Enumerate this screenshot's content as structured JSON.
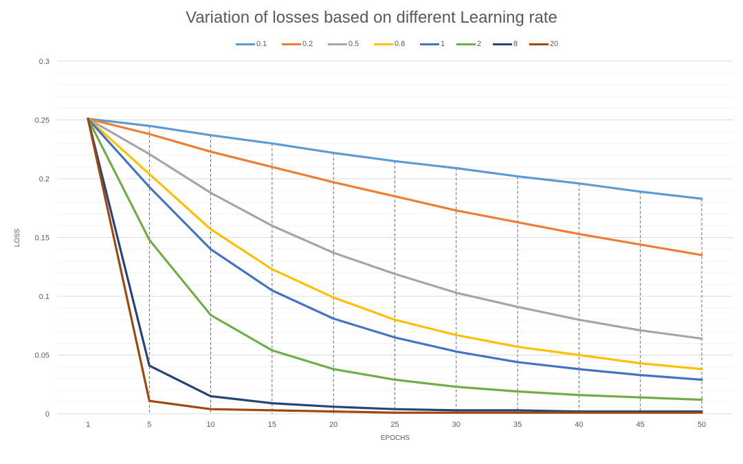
{
  "chart_data": {
    "type": "line",
    "title": "Variation of losses based on different Learning rate",
    "xlabel": "EPOCHS",
    "ylabel": "LOSS",
    "categories": [
      "1",
      "5",
      "10",
      "15",
      "20",
      "25",
      "30",
      "35",
      "40",
      "45",
      "50"
    ],
    "ylim": [
      0,
      0.3
    ],
    "yticks": [
      "0",
      "0.05",
      "0.1",
      "0.15",
      "0.2",
      "0.25",
      "0.3"
    ],
    "grid": true,
    "legend_position": "top",
    "series": [
      {
        "name": "0.1",
        "color": "#5B9BD5",
        "values": [
          0.251,
          0.245,
          0.237,
          0.23,
          0.222,
          0.215,
          0.209,
          0.202,
          0.196,
          0.189,
          0.183
        ]
      },
      {
        "name": "0.2",
        "color": "#ED7D31",
        "values": [
          0.251,
          0.238,
          0.223,
          0.21,
          0.197,
          0.185,
          0.173,
          0.163,
          0.153,
          0.144,
          0.135
        ]
      },
      {
        "name": "0.5",
        "color": "#A5A5A5",
        "values": [
          0.251,
          0.221,
          0.188,
          0.16,
          0.137,
          0.119,
          0.103,
          0.091,
          0.08,
          0.071,
          0.064
        ]
      },
      {
        "name": "0.8",
        "color": "#FFC000",
        "values": [
          0.251,
          0.204,
          0.157,
          0.123,
          0.099,
          0.08,
          0.067,
          0.057,
          0.05,
          0.043,
          0.038
        ]
      },
      {
        "name": "1",
        "color": "#4472C4",
        "values": [
          0.251,
          0.193,
          0.14,
          0.105,
          0.081,
          0.065,
          0.053,
          0.044,
          0.038,
          0.033,
          0.029
        ]
      },
      {
        "name": "2",
        "color": "#70AD47",
        "values": [
          0.251,
          0.148,
          0.084,
          0.054,
          0.038,
          0.029,
          0.023,
          0.019,
          0.016,
          0.014,
          0.012
        ]
      },
      {
        "name": "8",
        "color": "#264478",
        "values": [
          0.251,
          0.041,
          0.015,
          0.009,
          0.006,
          0.004,
          0.003,
          0.003,
          0.002,
          0.002,
          0.002
        ]
      },
      {
        "name": "20",
        "color": "#9E480E",
        "values": [
          0.251,
          0.011,
          0.004,
          0.003,
          0.002,
          0.001,
          0.001,
          0.001,
          0.001,
          0.001,
          0.001
        ]
      }
    ]
  }
}
